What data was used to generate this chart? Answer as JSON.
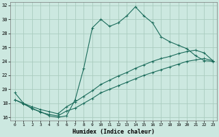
{
  "xlabel": "Humidex (Indice chaleur)",
  "bg_color": "#cce8e0",
  "grid_color": "#aaccbf",
  "line_color": "#1a6b5a",
  "xlim": [
    -0.5,
    23.5
  ],
  "ylim": [
    15.5,
    32.5
  ],
  "xticks": [
    0,
    1,
    2,
    3,
    4,
    5,
    6,
    7,
    8,
    9,
    10,
    11,
    12,
    13,
    14,
    15,
    16,
    17,
    18,
    19,
    20,
    21,
    22,
    23
  ],
  "yticks": [
    16,
    18,
    20,
    22,
    24,
    26,
    28,
    30,
    32
  ],
  "line1_x": [
    0,
    1,
    2,
    3,
    4,
    5,
    6,
    7,
    8,
    9,
    10,
    11,
    12,
    13,
    14,
    15,
    16,
    17,
    18,
    19,
    20,
    21,
    22,
    23
  ],
  "line1_y": [
    19.5,
    18.0,
    17.2,
    16.8,
    16.2,
    16.0,
    16.2,
    18.5,
    23.0,
    28.8,
    30.0,
    29.0,
    29.5,
    30.5,
    31.8,
    30.5,
    29.5,
    27.5,
    26.8,
    26.3,
    25.8,
    24.8,
    24.1,
    24.0
  ],
  "line2_x": [
    0,
    1,
    2,
    3,
    4,
    5,
    6,
    7,
    8,
    9,
    10,
    11,
    12,
    13,
    14,
    15,
    16,
    17,
    18,
    19,
    20,
    21,
    22,
    23
  ],
  "line2_y": [
    18.5,
    17.9,
    17.3,
    16.7,
    16.4,
    16.2,
    16.9,
    17.3,
    18.0,
    18.7,
    19.5,
    20.0,
    20.5,
    21.0,
    21.5,
    22.0,
    22.4,
    22.8,
    23.2,
    23.6,
    24.0,
    24.2,
    24.4,
    24.1
  ],
  "line3_x": [
    0,
    1,
    2,
    3,
    4,
    5,
    6,
    7,
    8,
    9,
    10,
    11,
    12,
    13,
    14,
    15,
    16,
    17,
    18,
    19,
    20,
    21,
    22,
    23
  ],
  "line3_y": [
    18.5,
    18.0,
    17.5,
    17.1,
    16.8,
    16.5,
    17.5,
    18.2,
    19.0,
    19.8,
    20.7,
    21.3,
    21.9,
    22.4,
    23.0,
    23.5,
    24.0,
    24.4,
    24.7,
    25.1,
    25.4,
    25.6,
    25.2,
    24.1
  ]
}
